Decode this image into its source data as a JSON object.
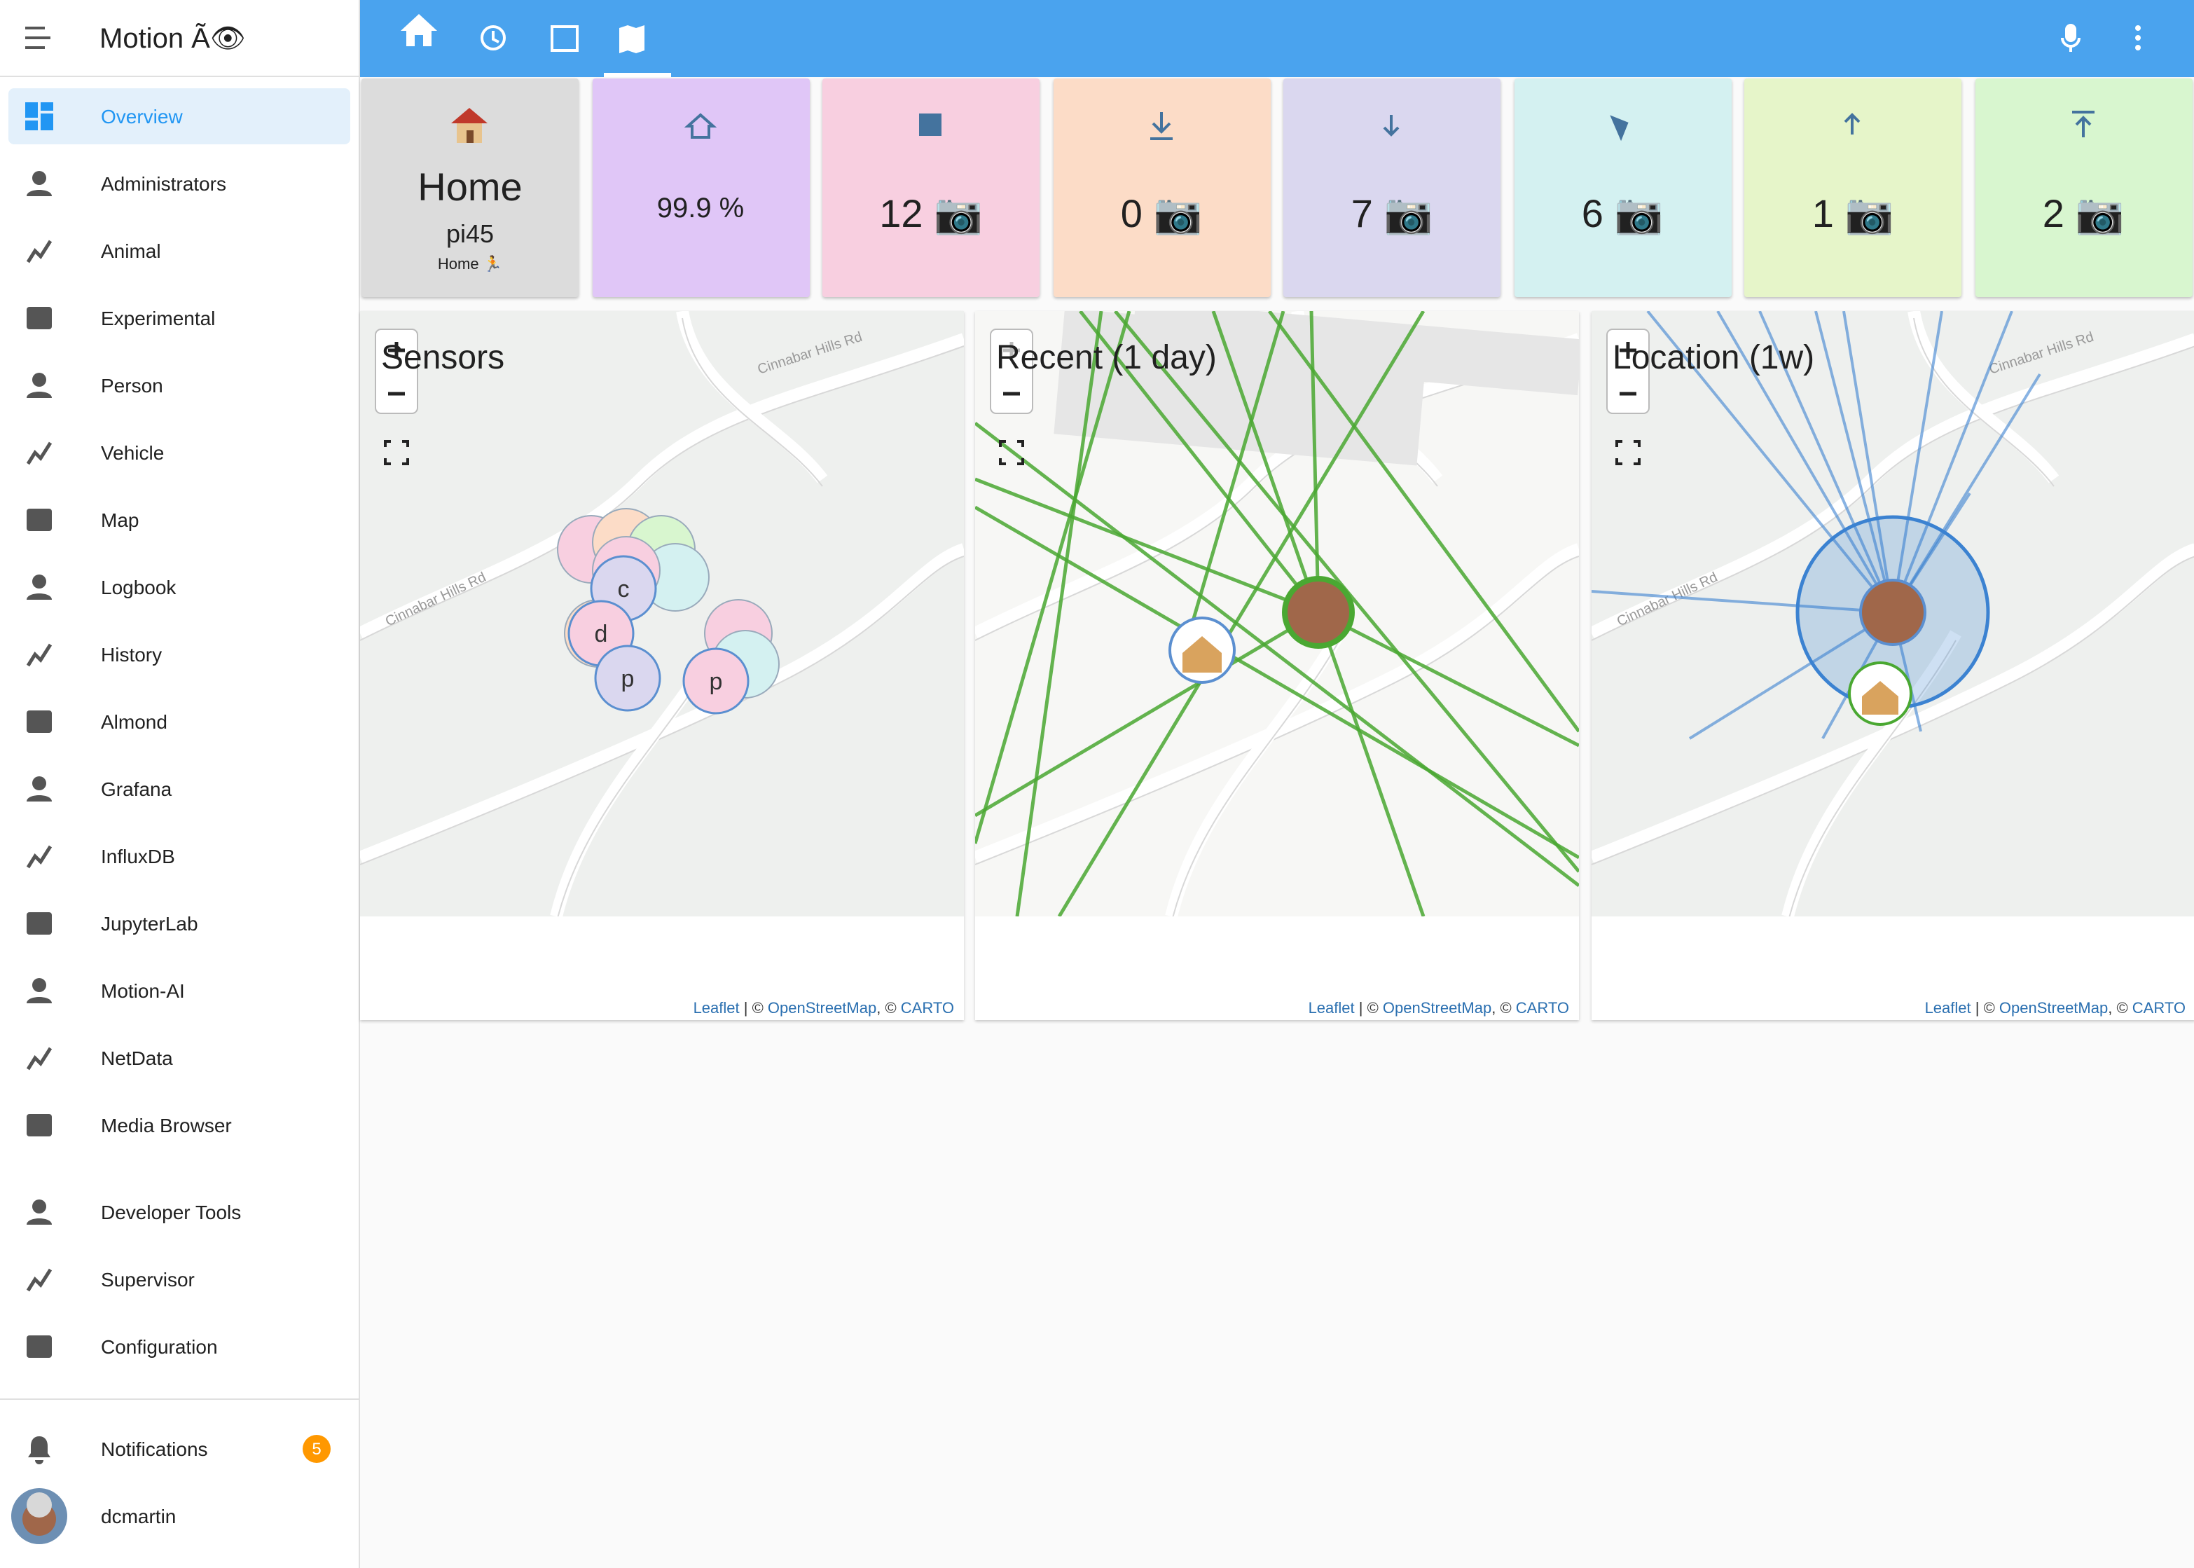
{
  "sidebar": {
    "title": "Motion Ã👁",
    "items": [
      "Overview",
      "Administrators",
      "Animal",
      "Experimental",
      "Person",
      "Vehicle",
      "Map",
      "Logbook",
      "History",
      "Almond",
      "Grafana",
      "InfluxDB",
      "JupyterLab",
      "Motion-AI",
      "NetData",
      "Media Browser"
    ],
    "tools": [
      "Developer Tools",
      "Supervisor",
      "Configuration"
    ],
    "notifications": {
      "label": "Notifications",
      "count": "5"
    },
    "user": "dcmartin"
  },
  "cards": [
    {
      "title": "Home",
      "subtitle": "pi45",
      "detail": "Home 🏃"
    },
    {
      "value": "99.9 %"
    },
    {
      "value": "12 📷"
    },
    {
      "value": "0 📷"
    },
    {
      "value": "7 📷"
    },
    {
      "value": "6 📷"
    },
    {
      "value": "1 📷"
    },
    {
      "value": "2 📷"
    }
  ],
  "maps": [
    {
      "title": "Sensors",
      "road_label": "Cinnabar Hills Rd",
      "markers": [
        "c",
        "d",
        "p",
        "p"
      ]
    },
    {
      "title": "Recent (1 day)"
    },
    {
      "title": "Location (1w)",
      "road_label": "Cinnabar Hills Rd"
    }
  ],
  "attribution": [
    "Leaflet",
    " | © ",
    "OpenStreetMap",
    ", © ",
    "CARTO"
  ]
}
